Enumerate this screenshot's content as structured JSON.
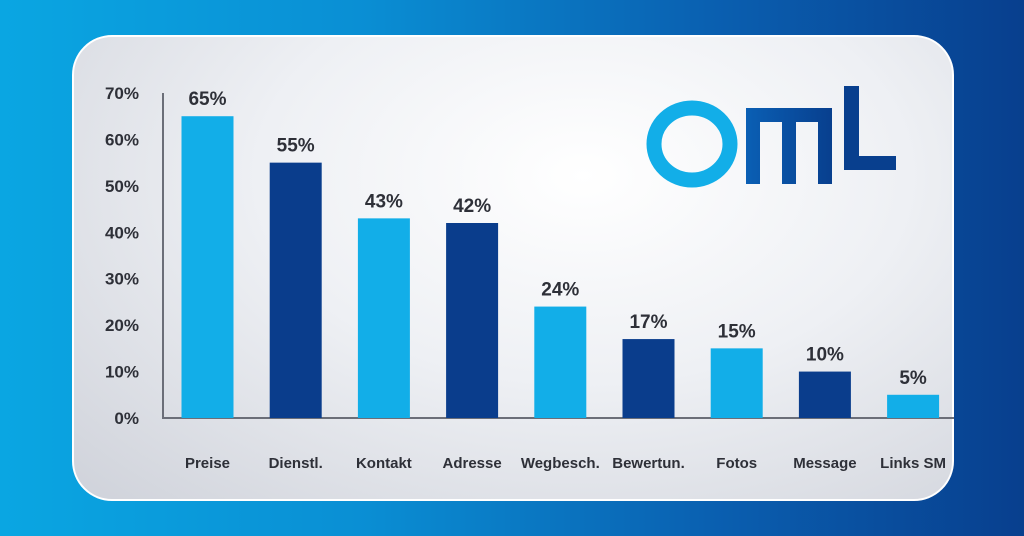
{
  "colors": {
    "light": "#12aee8",
    "dark": "#0a3d8c",
    "axis": "#6b6e78",
    "text": "#2e3038"
  },
  "logo": {
    "text": "OMT",
    "icon": "omt-logo"
  },
  "chart_data": {
    "type": "bar",
    "title": "",
    "xlabel": "",
    "ylabel": "",
    "ylim": [
      0,
      70
    ],
    "yticks": [
      0,
      10,
      20,
      30,
      40,
      50,
      60,
      70
    ],
    "ytick_labels": [
      "0%",
      "10%",
      "20%",
      "30%",
      "40%",
      "50%",
      "60%",
      "70%"
    ],
    "categories": [
      "Preise",
      "Dienstl.",
      "Kontakt",
      "Adresse",
      "Wegbesch.",
      "Bewertun.",
      "Fotos",
      "Message",
      "Links SM"
    ],
    "values": [
      65,
      55,
      43,
      42,
      24,
      17,
      15,
      10,
      5
    ],
    "value_labels": [
      "65%",
      "55%",
      "43%",
      "42%",
      "24%",
      "17%",
      "15%",
      "10%",
      "5%"
    ],
    "bar_colors": [
      "#12aee8",
      "#0a3d8c",
      "#12aee8",
      "#0a3d8c",
      "#12aee8",
      "#0a3d8c",
      "#12aee8",
      "#0a3d8c",
      "#12aee8"
    ],
    "grid": false,
    "legend": "none"
  }
}
